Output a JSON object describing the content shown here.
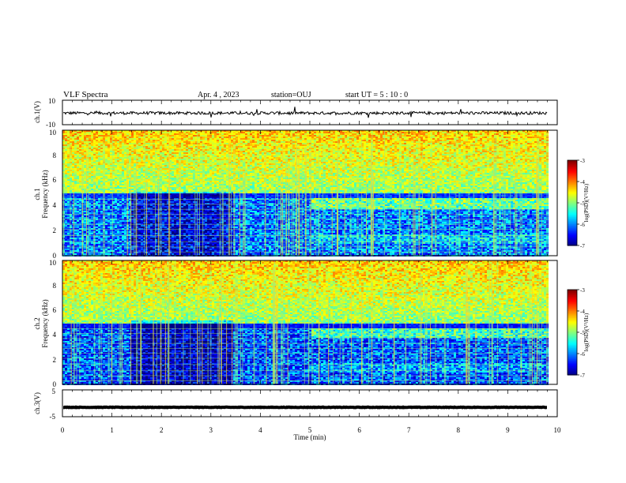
{
  "header": {
    "title": "VLF Spectra",
    "date": "Apr. 4  , 2023",
    "station": "station=OUJ",
    "start": "start  UT  =   5 : 10 : 0"
  },
  "chart_data": [
    {
      "type": "line",
      "ylabel": "ch.1(V)",
      "ylim": [
        -10,
        10
      ],
      "ytick_labels": [
        "10",
        "-10"
      ],
      "xlim": [
        0,
        10
      ],
      "baseline_level": -0.5,
      "data_end_min": 9.8
    },
    {
      "type": "heatmap",
      "ylabel": "ch.1\nFrequency  (kHz)",
      "ylim": [
        0,
        10
      ],
      "ytick_labels": [
        "0",
        "2",
        "4",
        "6",
        "8",
        "10"
      ],
      "xlim": [
        0,
        10
      ],
      "data_end_min": 9.8,
      "colorbar": {
        "label": "log(PSD)(V²/Hz)",
        "range": [
          -7,
          -3
        ],
        "tick_labels": [
          "-3",
          "-4",
          "-5",
          "-6",
          "-7"
        ]
      }
    },
    {
      "type": "heatmap",
      "ylabel": "ch.2\nFrequency  (kHz)",
      "ylim": [
        0,
        10
      ],
      "ytick_labels": [
        "0",
        "2",
        "4",
        "6",
        "8",
        "10"
      ],
      "xlim": [
        0,
        10
      ],
      "data_end_min": 9.8,
      "colorbar": {
        "label": "log(PSD)(V²/Hz)",
        "range": [
          -7,
          -3
        ],
        "tick_labels": [
          "-3",
          "-4",
          "-5",
          "-6",
          "-7"
        ]
      }
    },
    {
      "type": "line",
      "ylabel": "ch.3(V)",
      "ylim": [
        -5,
        5
      ],
      "ytick_labels": [
        "5",
        "-5"
      ],
      "xlim": [
        0,
        10
      ],
      "baseline_level": -1.5,
      "data_end_min": 9.8,
      "xlabel": "Time  (min)",
      "xtick_labels": [
        "0",
        "1",
        "2",
        "3",
        "4",
        "5",
        "6",
        "7",
        "8",
        "9",
        "10"
      ]
    }
  ]
}
